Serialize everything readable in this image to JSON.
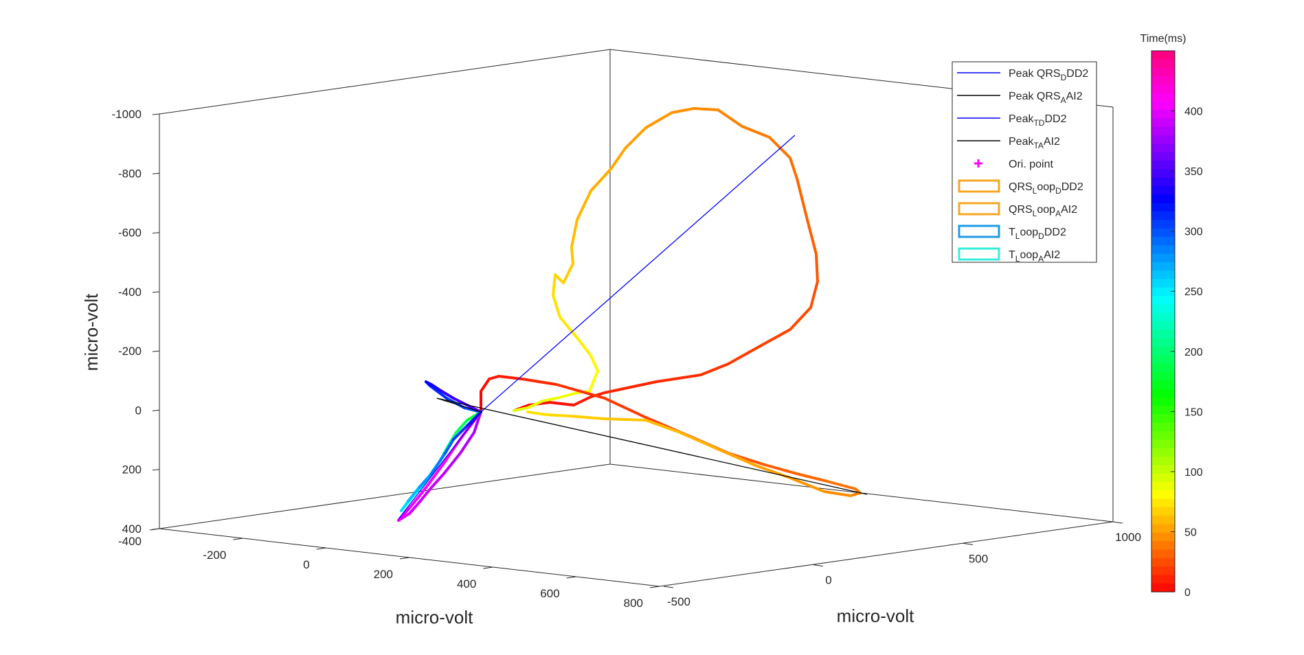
{
  "chart_data": {
    "type": "line",
    "subtype": "3d-loop",
    "axes": {
      "z": {
        "label": "micro-volt",
        "range": [
          -1000,
          400
        ],
        "reversed": true,
        "ticks": [
          "-1000",
          "-800",
          "-600",
          "-400",
          "-200",
          "0",
          "200",
          "400"
        ]
      },
      "x_left": {
        "label": "micro-volt",
        "range": [
          -400,
          800
        ],
        "ticks": [
          "-400",
          "-200",
          "0",
          "200",
          "400",
          "600",
          "800"
        ]
      },
      "y_right": {
        "label": "micro-volt",
        "range": [
          -500,
          1000
        ],
        "ticks": [
          "-500",
          "0",
          "500",
          "1000"
        ]
      }
    },
    "grid": false,
    "legend": {
      "position": "top-right",
      "entries": [
        {
          "label": "Peak QRS",
          "sub": "D",
          "suffix": "DD2",
          "style": "line",
          "color": "#0000ff"
        },
        {
          "label": "Peak QRS",
          "sub": "A",
          "suffix": "AI2",
          "style": "line",
          "color": "#000000"
        },
        {
          "label": "Peak",
          "sub": "TD",
          "suffix": "DD2",
          "style": "line",
          "color": "#0000ff"
        },
        {
          "label": "Peak",
          "sub": "TA",
          "suffix": "AI2",
          "style": "line",
          "color": "#000000"
        },
        {
          "label": "Ori. point",
          "sub": "",
          "suffix": "",
          "style": "marker",
          "color": "#ff00ff"
        },
        {
          "label": "QRS",
          "sub": "L",
          "mid": "oop",
          "sub2": "D",
          "suffix": "DD2",
          "style": "patch",
          "color": "#f5a623"
        },
        {
          "label": "QRS",
          "sub": "L",
          "mid": "oop",
          "sub2": "A",
          "suffix": "AI2",
          "style": "patch",
          "color": "#f5a623"
        },
        {
          "label": "T",
          "sub": "L",
          "mid": "oop",
          "sub2": "D",
          "suffix": "DD2",
          "style": "patch",
          "color": "#1e9be6"
        },
        {
          "label": "T",
          "sub": "L",
          "mid": "oop",
          "sub2": "A",
          "suffix": "AI2",
          "style": "patch",
          "color": "#33eedd"
        }
      ]
    },
    "colorbar": {
      "title": "Time(ms)",
      "range": [
        0,
        450
      ],
      "ticks": [
        "0",
        "50",
        "100",
        "150",
        "200",
        "250",
        "300",
        "350",
        "400"
      ],
      "colormap": "hsv"
    }
  }
}
